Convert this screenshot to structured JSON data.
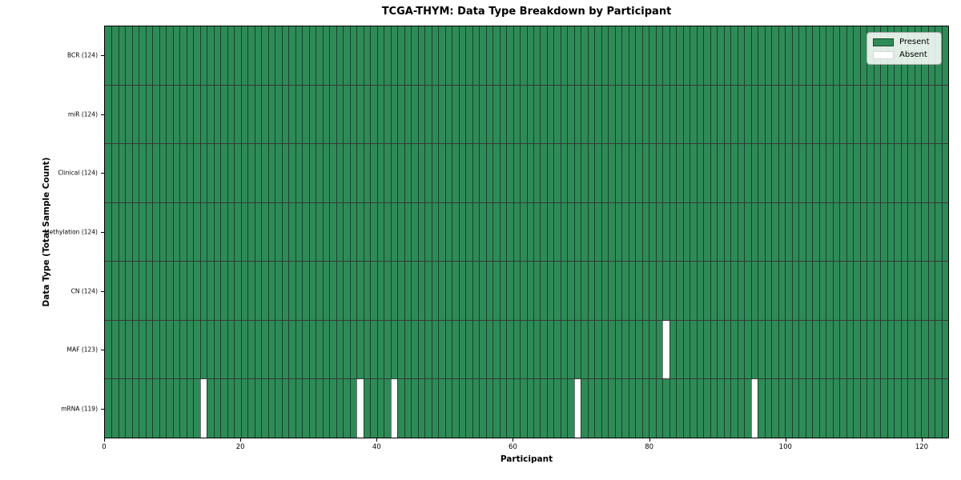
{
  "title": "TCGA-THYM: Data Type Breakdown by Participant",
  "xlabel": "Participant",
  "ylabel": "Data Type (Total Sample Count)",
  "legend": {
    "present_label": "Present",
    "absent_label": "Absent"
  },
  "colors": {
    "present": "#2e8b57",
    "absent": "#ffffff"
  },
  "chart_data": {
    "type": "heatmap",
    "title": "TCGA-THYM: Data Type Breakdown by Participant",
    "xlabel": "Participant",
    "ylabel": "Data Type (Total Sample Count)",
    "n_participants": 124,
    "xlim": [
      0,
      124
    ],
    "x_ticks": [
      0,
      20,
      40,
      60,
      80,
      100,
      120
    ],
    "legend_entries": [
      "Present",
      "Absent"
    ],
    "legend_position": "upper right",
    "grid": "per-cell edges",
    "rows": [
      {
        "label": "BCR (124)",
        "data_type": "BCR",
        "present_count": 124,
        "absent_participants": []
      },
      {
        "label": "miR (124)",
        "data_type": "miR",
        "present_count": 124,
        "absent_participants": []
      },
      {
        "label": "Clinical (124)",
        "data_type": "Clinical",
        "present_count": 124,
        "absent_participants": []
      },
      {
        "label": "Methylation (124)",
        "data_type": "Methylation",
        "present_count": 124,
        "absent_participants": []
      },
      {
        "label": "CN (124)",
        "data_type": "CN",
        "present_count": 124,
        "absent_participants": []
      },
      {
        "label": "MAF (123)",
        "data_type": "MAF",
        "present_count": 123,
        "absent_participants": [
          82
        ]
      },
      {
        "label": "mRNA (119)",
        "data_type": "mRNA",
        "present_count": 119,
        "absent_participants": [
          14,
          37,
          42,
          69,
          95
        ]
      }
    ]
  }
}
